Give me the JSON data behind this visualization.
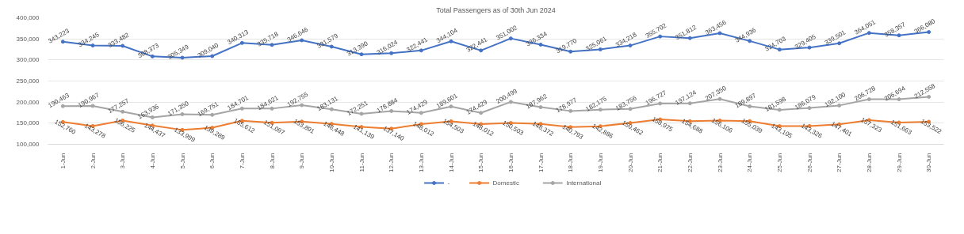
{
  "chart_data": {
    "type": "line",
    "title": "Total Passengers as of 30th Jun 2024",
    "categories": [
      "1-Jun",
      "2-Jun",
      "3-Jun",
      "4-Jun",
      "5-Jun",
      "6-Jun",
      "7-Jun",
      "8-Jun",
      "9-Jun",
      "10-Jun",
      "11-Jun",
      "12-Jun",
      "13-Jun",
      "14-Jun",
      "15-Jun",
      "16-Jun",
      "17-Jun",
      "18-Jun",
      "19-Jun",
      "20-Jun",
      "21-Jun",
      "22-Jun",
      "23-Jun",
      "24-Jun",
      "25-Jun",
      "26-Jun",
      "27-Jun",
      "28-Jun",
      "29-Jun",
      "30-Jun"
    ],
    "series": [
      {
        "name": "-",
        "color": "#4472c4",
        "values": [
          343223,
          334245,
          333482,
          308373,
          305349,
          309040,
          340313,
          335718,
          346646,
          331579,
          313390,
          316024,
          322441,
          344104,
          322441,
          351002,
          336334,
          319770,
          325061,
          334218,
          355702,
          351812,
          363456,
          344936,
          324703,
          329405,
          339501,
          364051,
          358357,
          366080
        ],
        "value_labels": [
          "343,223",
          "334,245",
          "333,482",
          "308,373",
          "305,349",
          "309,040",
          "340,313",
          "335,718",
          "346,646",
          "331,579",
          "313,390",
          "316,024",
          "322,441",
          "344,104",
          "322,441",
          "351,002",
          "336,334",
          "319,770",
          "325,061",
          "334,218",
          "355,702",
          "351,812",
          "363,456",
          "344,936",
          "324,703",
          "329,405",
          "339,501",
          "364,051",
          "358,357",
          "366,080"
        ]
      },
      {
        "name": "Domestic",
        "color": "#ed7d31",
        "values": [
          152760,
          143278,
          156225,
          144437,
          133999,
          139289,
          155612,
          151097,
          153891,
          148448,
          141139,
          137140,
          148012,
          154503,
          148012,
          150503,
          148372,
          140793,
          142886,
          150462,
          158975,
          154688,
          156106,
          155039,
          143105,
          143326,
          147401,
          157323,
          151663,
          153522
        ],
        "value_labels": [
          "152,760",
          "143,278",
          "156,225",
          "144,437",
          "133,999",
          "139,289",
          "155,612",
          "151,097",
          "153,891",
          "148,448",
          "141,139",
          "137,140",
          "148,012",
          "154,503",
          "148,012",
          "150,503",
          "148,372",
          "140,793",
          "142,886",
          "150,462",
          "158,975",
          "154,688",
          "156,106",
          "155,039",
          "143,105",
          "143,326",
          "147,401",
          "157,323",
          "151,663",
          "153,522"
        ]
      },
      {
        "name": "International",
        "color": "#a5a5a5",
        "values": [
          190463,
          190967,
          177257,
          163936,
          171350,
          169751,
          184701,
          184621,
          192755,
          183131,
          172251,
          178884,
          174429,
          189601,
          174429,
          200499,
          187962,
          178977,
          182175,
          183756,
          196727,
          197124,
          207350,
          189897,
          181598,
          186079,
          192100,
          206728,
          206694,
          212558
        ],
        "value_labels": [
          "190,463",
          "190,967",
          "177,257",
          "163,936",
          "171,350",
          "169,751",
          "184,701",
          "184,621",
          "192,755",
          "183,131",
          "172,251",
          "178,884",
          "174,429",
          "189,601",
          "174,429",
          "200,499",
          "187,962",
          "178,977",
          "182,175",
          "183,756",
          "196,727",
          "197,124",
          "207,350",
          "189,897",
          "181,598",
          "186,079",
          "192,100",
          "206,728",
          "206,694",
          "212,558"
        ]
      }
    ],
    "ylim": [
      100000,
      400000
    ],
    "yticks": [
      {
        "value": 100000,
        "label": "100,000"
      },
      {
        "value": 150000,
        "label": "150,000"
      },
      {
        "value": 200000,
        "label": "200,000"
      },
      {
        "value": 250000,
        "label": "250,000"
      },
      {
        "value": 300000,
        "label": "300,000"
      },
      {
        "value": 350000,
        "label": "350,000"
      },
      {
        "value": 400000,
        "label": "400,000"
      }
    ],
    "grid": "y",
    "legend": "bottom",
    "marker": "circle",
    "line_style": "solid"
  }
}
